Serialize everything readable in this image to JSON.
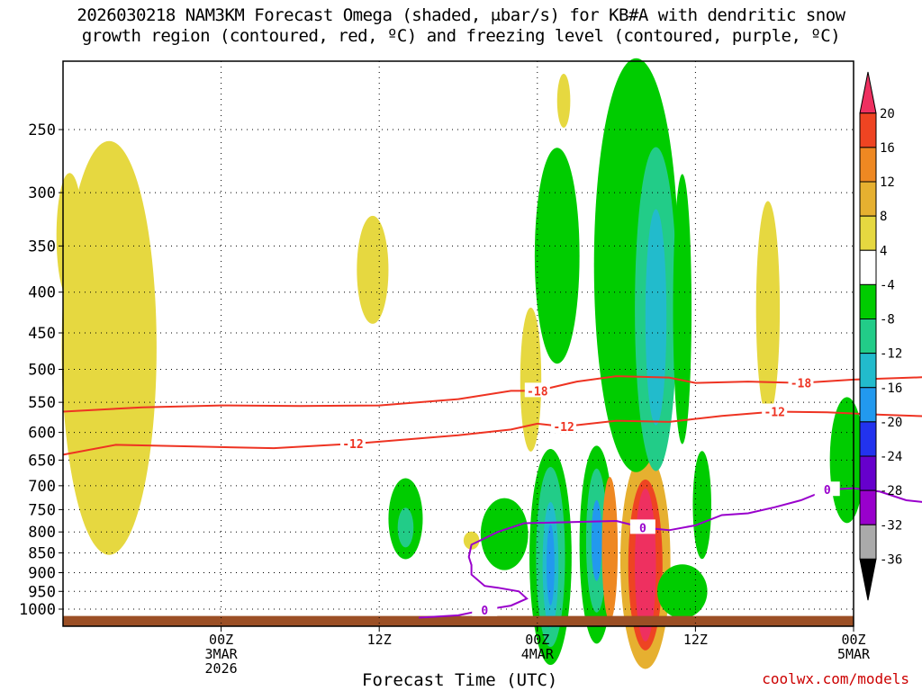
{
  "title_line1": "2026030218 NAM3KM Forecast Omega (shaded, μbar/s) for KB#A with dendritic snow",
  "title_line2": "growth region (contoured, red, ºC) and freezing level (contoured, purple, ºC)",
  "credit": "coolwx.com/models",
  "chart_data": {
    "type": "heatmap",
    "xlabel": "Forecast Time (UTC)",
    "ylabel": "",
    "x_unit": "forecast hour",
    "xlim": [
      -6,
      54
    ],
    "ylim_hPa": [
      1025,
      200
    ],
    "y_scale": "log",
    "y_ticks": [
      250,
      300,
      350,
      400,
      450,
      500,
      550,
      600,
      650,
      700,
      750,
      800,
      850,
      900,
      950,
      1000
    ],
    "x_ticks": [
      {
        "hour": 6,
        "lines": [
          "00Z",
          "3MAR",
          "2026"
        ]
      },
      {
        "hour": 18,
        "lines": [
          "12Z"
        ]
      },
      {
        "hour": 30,
        "lines": [
          "00Z",
          "4MAR"
        ]
      },
      {
        "hour": 42,
        "lines": [
          "12Z"
        ]
      },
      {
        "hour": 54,
        "lines": [
          "00Z",
          "5MAR"
        ]
      }
    ],
    "grid": true,
    "legend": {
      "placement": "right",
      "unit": "μbar/s",
      "labels": [
        "20",
        "16",
        "12",
        "8",
        "4",
        "-4",
        "-8",
        "-12",
        "-16",
        "-20",
        "-24",
        "-28",
        "-32",
        "-36"
      ],
      "colors": [
        "#ee3060",
        "#ee4422",
        "#ee8822",
        "#e6b030",
        "#e6d840",
        "#ffffff",
        "#00cc00",
        "#22cc88",
        "#22bbcc",
        "#2299ee",
        "#2233ee",
        "#6600cc",
        "#9900cc",
        "#aaaaaa",
        "#000000"
      ]
    },
    "contours": {
      "dendritic_red": [
        {
          "label": "-18",
          "color": "#ee3322",
          "points": [
            [
              -6,
              565
            ],
            [
              0,
              558
            ],
            [
              6,
              555
            ],
            [
              12,
              556
            ],
            [
              18,
              555
            ],
            [
              24,
              545
            ],
            [
              28,
              532
            ],
            [
              30,
              532
            ],
            [
              33,
              518
            ],
            [
              36,
              510
            ],
            [
              40,
              512
            ],
            [
              42,
              520
            ],
            [
              46,
              518
            ],
            [
              50,
              520
            ],
            [
              54,
              515
            ],
            [
              60,
              511
            ]
          ]
        },
        {
          "label": "-12",
          "color": "#ee3322",
          "points": [
            [
              -6,
              640
            ],
            [
              -2,
              622
            ],
            [
              4,
              625
            ],
            [
              10,
              628
            ],
            [
              16,
              620
            ],
            [
              24,
              605
            ],
            [
              28,
              595
            ],
            [
              30,
              585
            ],
            [
              32,
              590
            ],
            [
              36,
              580
            ],
            [
              40,
              582
            ],
            [
              44,
              572
            ],
            [
              48,
              565
            ],
            [
              52,
              566
            ],
            [
              56,
              570
            ],
            [
              60,
              573
            ]
          ]
        }
      ],
      "freezing_purple": {
        "label": "0",
        "color": "#9900cc",
        "points": [
          [
            21,
            1025
          ],
          [
            24,
            1018
          ],
          [
            26,
            1002
          ],
          [
            28,
            990
          ],
          [
            29.2,
            970
          ],
          [
            28.6,
            950
          ],
          [
            27,
            940
          ],
          [
            26,
            935
          ],
          [
            25,
            905
          ],
          [
            25,
            880
          ],
          [
            24.8,
            860
          ],
          [
            25,
            830
          ],
          [
            27,
            800
          ],
          [
            29,
            780
          ],
          [
            32,
            778
          ],
          [
            36,
            775
          ],
          [
            38,
            790
          ],
          [
            40,
            796
          ],
          [
            42,
            785
          ],
          [
            44,
            762
          ],
          [
            46,
            758
          ],
          [
            48,
            745
          ],
          [
            50,
            730
          ],
          [
            52,
            708
          ],
          [
            54,
            705
          ],
          [
            56,
            712
          ],
          [
            58,
            730
          ],
          [
            60,
            736
          ]
        ]
      }
    },
    "ground_level_hPa": 1020,
    "ground_color": "#9b4f25"
  }
}
